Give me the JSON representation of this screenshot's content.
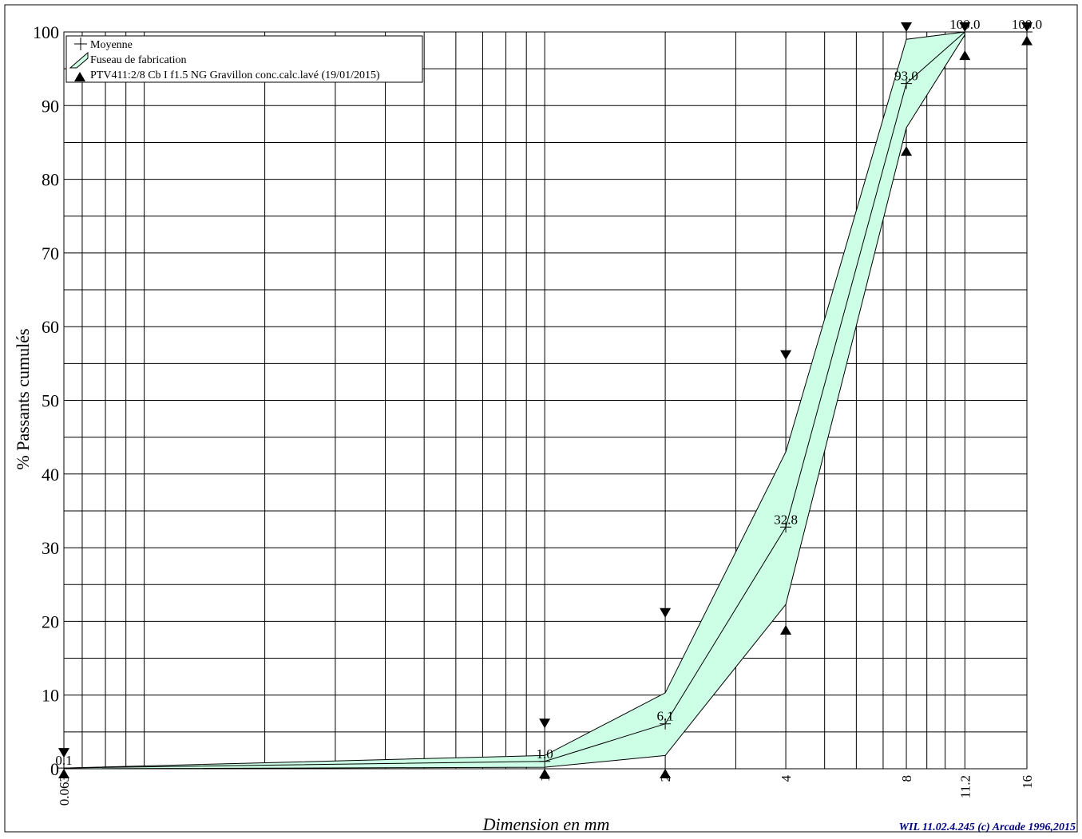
{
  "chart_data": {
    "type": "line",
    "x_scale": "log",
    "xlabel": "Dimension en mm",
    "ylabel": "% Passants cumulés",
    "xlim": [
      0.063,
      16
    ],
    "ylim": [
      0,
      100
    ],
    "y_ticks": [
      0,
      10,
      20,
      30,
      40,
      50,
      60,
      70,
      80,
      90,
      100
    ],
    "x_tick_labels": [
      {
        "value": 0.063,
        "label": "0.063"
      },
      {
        "value": 1,
        "label": "1"
      },
      {
        "value": 2,
        "label": "2"
      },
      {
        "value": 4,
        "label": "4"
      },
      {
        "value": 8,
        "label": "8"
      },
      {
        "value": 11.2,
        "label": "11.2"
      },
      {
        "value": 16,
        "label": "16"
      }
    ],
    "minor_x_gridlines": [
      0.07,
      0.08,
      0.09,
      0.1,
      0.2,
      0.3,
      0.4,
      0.5,
      0.6,
      0.7,
      0.8,
      0.9,
      3,
      5,
      6,
      7,
      9,
      10
    ],
    "legend": {
      "placement": "top-left",
      "entries": [
        "Moyenne",
        "Fuseau de fabrication",
        "PTV411:2/8 Cb I f1.5 NG Gravillon conc.calc.lavé (19/01/2015)"
      ]
    },
    "series": [
      {
        "name": "Moyenne",
        "x": [
          0.063,
          1,
          2,
          4,
          8,
          11.2,
          16
        ],
        "y": [
          0.1,
          1.0,
          6.1,
          32.8,
          93.0,
          100.0,
          100.0
        ],
        "labels": [
          "0.1",
          "1.0",
          "6.1",
          "32.8",
          "93.0",
          "100.0",
          "100.0"
        ]
      }
    ],
    "band": {
      "name": "Fuseau de fabrication",
      "x": [
        0.063,
        1,
        2,
        4,
        8,
        11.2
      ],
      "upper": [
        0.1,
        1.8,
        10.3,
        43.0,
        99.0,
        100.0
      ],
      "lower": [
        0.0,
        0.2,
        1.8,
        22.3,
        87.0,
        99.6
      ]
    },
    "spec_limits": {
      "x": [
        0.063,
        1,
        2,
        4,
        8,
        11.2,
        16
      ],
      "upper": [
        1.5,
        5.5,
        20.5,
        55.5,
        100,
        100,
        100
      ],
      "lower": [
        0,
        0,
        0,
        19.5,
        84.5,
        97.5,
        99.5
      ]
    },
    "colors": {
      "band_fill": "#ccffe6",
      "line": "#000000",
      "grid": "#000000",
      "footer": "#000080"
    }
  },
  "footer": "WIL 11.02.4.245 (c) Arcade 1996,2015"
}
